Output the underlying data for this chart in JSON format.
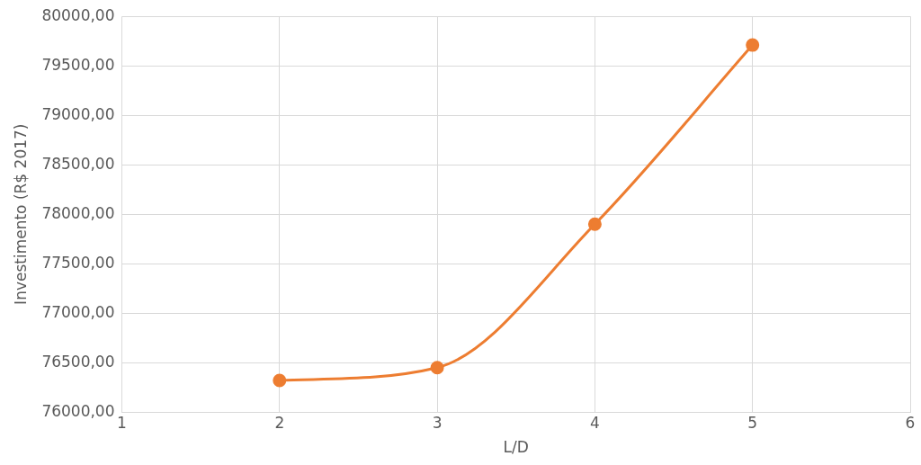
{
  "chart_data": {
    "type": "line",
    "xlabel": "L/D",
    "ylabel": "Investimento (R$ 2017)",
    "x": [
      2,
      3,
      4,
      5
    ],
    "series": [
      {
        "color": "#ed7d31",
        "values": [
          76320,
          76450,
          77900,
          79710
        ]
      }
    ],
    "xlim": [
      1,
      6
    ],
    "xticks": [
      1,
      2,
      3,
      4,
      5,
      6
    ],
    "ylim": [
      76000,
      80000
    ],
    "yticks": [
      {
        "value": 76000,
        "label": "76000,00"
      },
      {
        "value": 76500,
        "label": "76500,00"
      },
      {
        "value": 77000,
        "label": "77000,00"
      },
      {
        "value": 77500,
        "label": "77500,00"
      },
      {
        "value": 78000,
        "label": "78000,00"
      },
      {
        "value": 78500,
        "label": "78500,00"
      },
      {
        "value": 79000,
        "label": "79000,00"
      },
      {
        "value": 79500,
        "label": "79500,00"
      },
      {
        "value": 80000,
        "label": "80000,00"
      }
    ],
    "grid": true,
    "marker": "circle",
    "line_style": "solid",
    "legend": false
  }
}
